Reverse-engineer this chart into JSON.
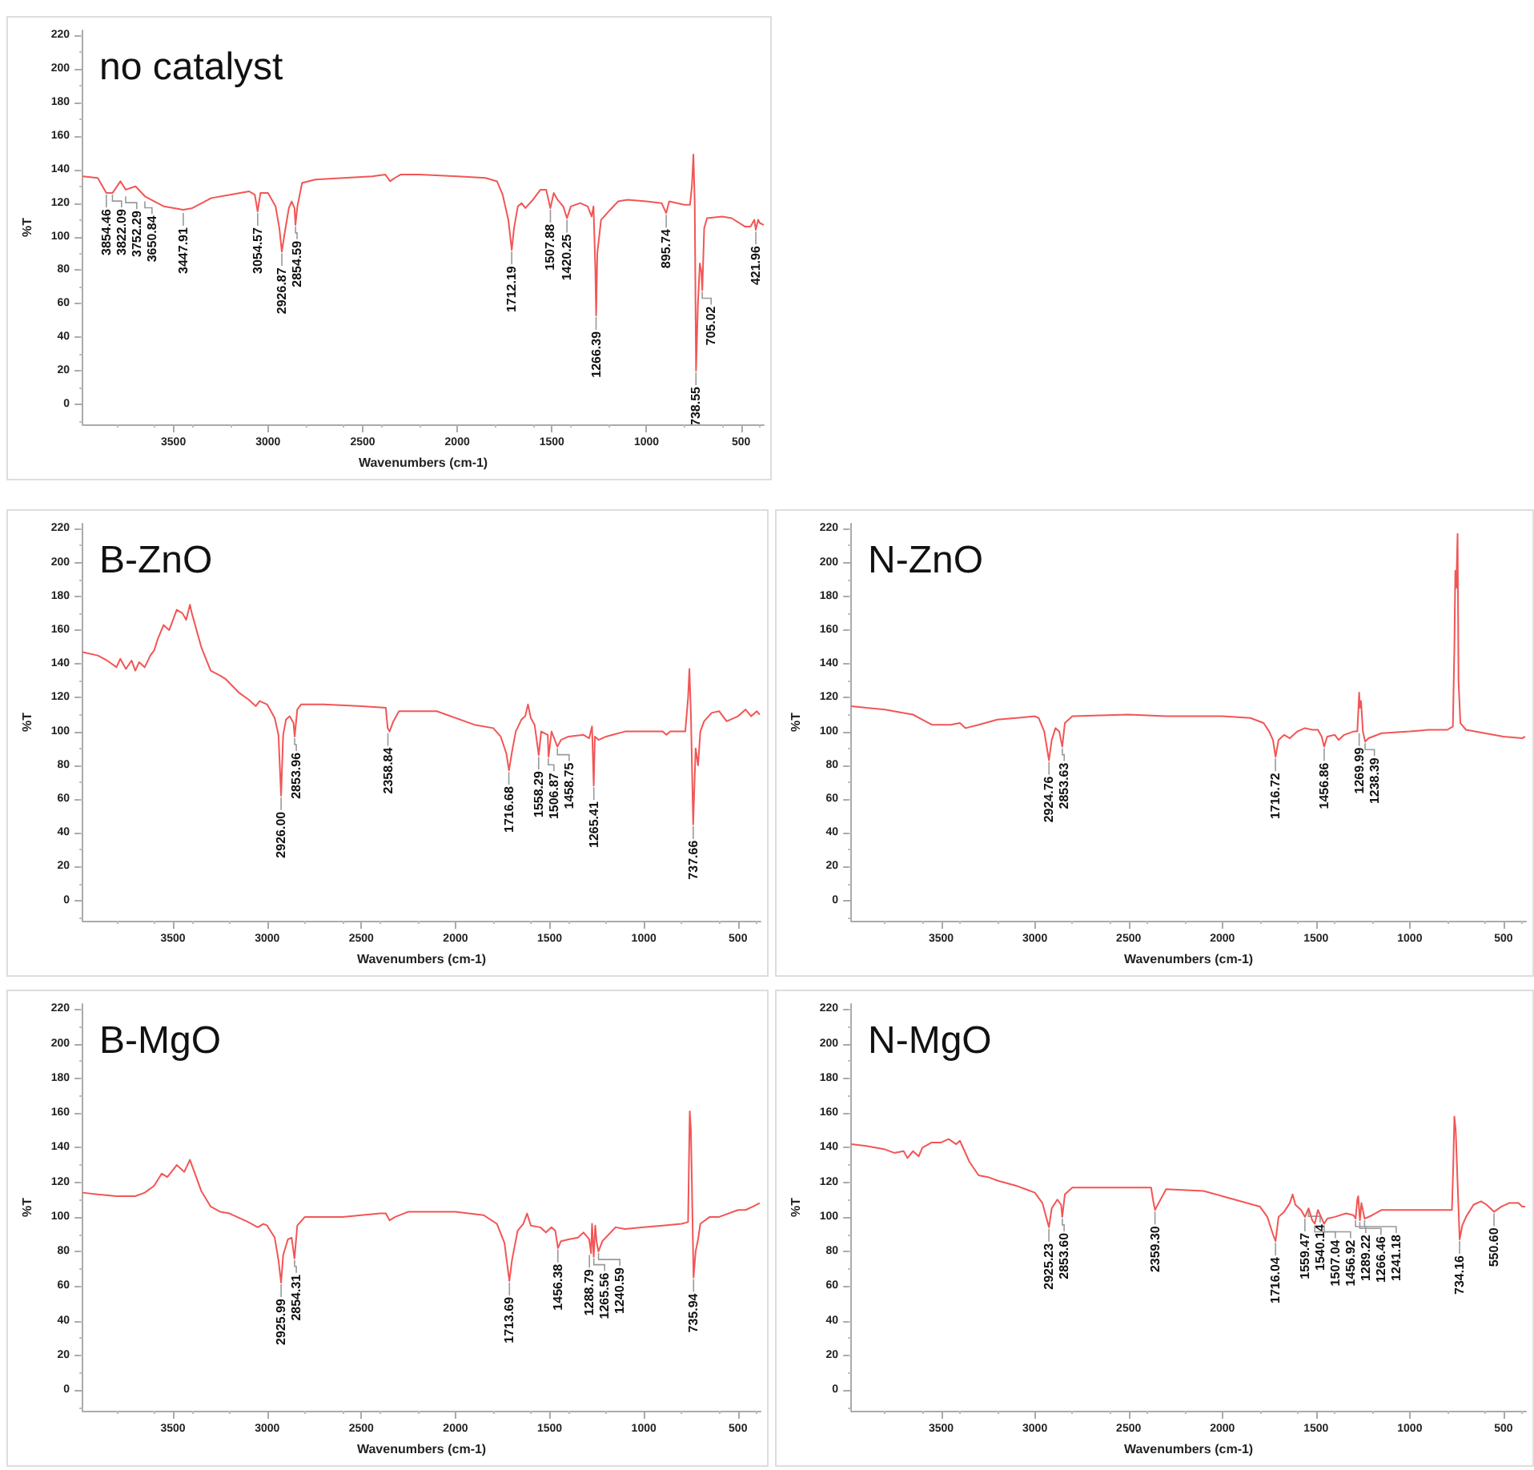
{
  "chart_data": [
    {
      "type": "line",
      "title": "no catalyst",
      "xlabel": "Wavenumbers (cm-1)",
      "ylabel": "%T",
      "color": "#f25555",
      "xlim": [
        3980,
        380
      ],
      "ylim": [
        -12,
        223
      ],
      "xticks": [
        3500,
        3000,
        2500,
        2000,
        1500,
        1000,
        500
      ],
      "yticks": [
        0,
        20,
        40,
        60,
        80,
        100,
        120,
        140,
        160,
        180,
        200,
        220
      ],
      "x": [
        3980,
        3900,
        3854.46,
        3822.09,
        3780,
        3752,
        3700,
        3650,
        3600,
        3550,
        3448,
        3400,
        3300,
        3200,
        3100,
        3070,
        3055,
        3040,
        3000,
        2960,
        2940,
        2927,
        2915,
        2890,
        2875,
        2860,
        2855,
        2845,
        2820,
        2750,
        2600,
        2450,
        2380,
        2355,
        2330,
        2300,
        2200,
        2000,
        1850,
        1790,
        1760,
        1730,
        1712,
        1700,
        1680,
        1660,
        1640,
        1600,
        1560,
        1530,
        1508,
        1490,
        1470,
        1440,
        1420,
        1400,
        1350,
        1310,
        1290,
        1280,
        1270,
        1266,
        1260,
        1240,
        1200,
        1150,
        1100,
        1000,
        920,
        896,
        880,
        800,
        770,
        760,
        752,
        745,
        738,
        728,
        718,
        710,
        705,
        695,
        680,
        600,
        550,
        480,
        450,
        430,
        422,
        410,
        400,
        380
      ],
      "values": [
        136,
        135,
        126,
        126,
        133,
        128,
        130,
        124,
        121,
        118,
        116,
        117,
        123,
        125,
        127,
        125,
        115,
        126,
        126,
        118,
        105,
        91,
        100,
        117,
        121,
        117,
        107,
        118,
        132,
        134,
        135,
        136,
        137,
        133,
        135,
        137,
        137,
        136,
        135,
        133,
        125,
        110,
        92,
        105,
        118,
        120,
        117,
        122,
        128,
        128,
        117,
        126,
        122,
        118,
        111,
        118,
        120,
        118,
        112,
        118,
        80,
        53,
        90,
        110,
        115,
        121,
        122,
        121,
        120,
        114,
        121,
        119,
        119,
        130,
        149,
        120,
        20,
        60,
        84,
        79,
        68,
        105,
        111,
        112,
        111,
        106,
        106,
        110,
        104,
        110,
        108,
        107
      ],
      "annotations": [
        {
          "text": "3854.46",
          "x": 3854.46,
          "y": 126
        },
        {
          "text": "3822.09",
          "x": 3822.09,
          "y": 126
        },
        {
          "text": "3752.29",
          "x": 3752.29,
          "y": 125
        },
        {
          "text": "3650.84",
          "x": 3650.84,
          "y": 122
        },
        {
          "text": "3447.91",
          "x": 3447.91,
          "y": 115
        },
        {
          "text": "3054.57",
          "x": 3054.57,
          "y": 115
        },
        {
          "text": "2926.87",
          "x": 2926.87,
          "y": 91
        },
        {
          "text": "2854.59",
          "x": 2854.59,
          "y": 107
        },
        {
          "text": "1712.19",
          "x": 1712.19,
          "y": 92
        },
        {
          "text": "1507.88",
          "x": 1507.88,
          "y": 117
        },
        {
          "text": "1420.25",
          "x": 1420.25,
          "y": 111
        },
        {
          "text": "1266.39",
          "x": 1266.39,
          "y": 53
        },
        {
          "text": "895.74",
          "x": 895.74,
          "y": 114
        },
        {
          "text": "738.55",
          "x": 738.55,
          "y": 20
        },
        {
          "text": "705.02",
          "x": 705.02,
          "y": 68
        },
        {
          "text": "421.96",
          "x": 421.96,
          "y": 104
        }
      ]
    },
    {
      "type": "line",
      "title": "B-ZnO",
      "xlabel": "Wavenumbers (cm-1)",
      "ylabel": "%T",
      "color": "#f25555",
      "xlim": [
        3980,
        380
      ],
      "ylim": [
        -12,
        223
      ],
      "xticks": [
        3500,
        3000,
        2500,
        2000,
        1500,
        1000,
        500
      ],
      "yticks": [
        0,
        20,
        40,
        60,
        80,
        100,
        120,
        140,
        160,
        180,
        200,
        220
      ],
      "x": [
        3980,
        3900,
        3850,
        3800,
        3780,
        3750,
        3720,
        3700,
        3680,
        3650,
        3620,
        3600,
        3580,
        3550,
        3520,
        3480,
        3450,
        3430,
        3410,
        3400,
        3350,
        3300,
        3250,
        3220,
        3150,
        3100,
        3060,
        3040,
        3000,
        2960,
        2940,
        2926,
        2915,
        2900,
        2880,
        2860,
        2854,
        2840,
        2820,
        2700,
        2500,
        2370,
        2360,
        2350,
        2330,
        2300,
        2100,
        1900,
        1800,
        1760,
        1730,
        1716,
        1700,
        1680,
        1650,
        1630,
        1615,
        1600,
        1580,
        1558,
        1545,
        1510,
        1506,
        1490,
        1459,
        1440,
        1400,
        1320,
        1290,
        1275,
        1266,
        1260,
        1240,
        1200,
        1100,
        900,
        880,
        860,
        780,
        765,
        758,
        750,
        738,
        725,
        712,
        700,
        680,
        640,
        600,
        560,
        500,
        460,
        430,
        400,
        385
      ],
      "values": [
        147,
        145,
        142,
        138,
        143,
        137,
        142,
        136,
        141,
        138,
        145,
        148,
        155,
        163,
        160,
        172,
        170,
        166,
        175,
        170,
        150,
        136,
        133,
        131,
        123,
        119,
        115,
        118,
        116,
        108,
        98,
        62,
        98,
        107,
        109,
        105,
        97,
        113,
        116,
        116,
        115,
        114,
        102,
        100,
        106,
        112,
        112,
        104,
        102,
        97,
        87,
        77,
        88,
        100,
        107,
        109,
        116,
        108,
        104,
        86,
        100,
        98,
        85,
        100,
        91,
        95,
        97,
        98,
        96,
        103,
        68,
        97,
        95,
        97,
        100,
        100,
        98,
        100,
        100,
        120,
        137,
        110,
        45,
        90,
        80,
        100,
        106,
        111,
        112,
        106,
        109,
        113,
        109,
        112,
        110
      ],
      "annotations": [
        {
          "text": "2926.00",
          "x": 2926.0,
          "y": 62
        },
        {
          "text": "2853.96",
          "x": 2853.96,
          "y": 97
        },
        {
          "text": "2358.84",
          "x": 2358.84,
          "y": 100
        },
        {
          "text": "1716.68",
          "x": 1716.68,
          "y": 77
        },
        {
          "text": "1558.29",
          "x": 1558.29,
          "y": 86
        },
        {
          "text": "1506.87",
          "x": 1506.87,
          "y": 85
        },
        {
          "text": "1458.75",
          "x": 1458.75,
          "y": 91
        },
        {
          "text": "1265.41",
          "x": 1265.41,
          "y": 68
        },
        {
          "text": "737.66",
          "x": 737.66,
          "y": 45
        }
      ]
    },
    {
      "type": "line",
      "title": "N-ZnO",
      "xlabel": "Wavenumbers (cm-1)",
      "ylabel": "%T",
      "color": "#f25555",
      "xlim": [
        3980,
        380
      ],
      "ylim": [
        -12,
        223
      ],
      "xticks": [
        3500,
        3000,
        2500,
        2000,
        1500,
        1000,
        500
      ],
      "yticks": [
        0,
        20,
        40,
        60,
        80,
        100,
        120,
        140,
        160,
        180,
        200,
        220
      ],
      "x": [
        3980,
        3900,
        3800,
        3700,
        3650,
        3600,
        3550,
        3500,
        3450,
        3400,
        3370,
        3300,
        3200,
        3000,
        2980,
        2950,
        2925,
        2910,
        2890,
        2870,
        2854,
        2840,
        2800,
        2500,
        2300,
        2000,
        1850,
        1780,
        1750,
        1730,
        1716,
        1700,
        1670,
        1640,
        1600,
        1560,
        1520,
        1490,
        1470,
        1457,
        1440,
        1400,
        1380,
        1350,
        1300,
        1280,
        1275,
        1270,
        1266,
        1260,
        1250,
        1238,
        1220,
        1150,
        1000,
        900,
        800,
        770,
        762,
        757,
        752,
        745,
        740,
        730,
        700,
        600,
        500,
        400,
        385
      ],
      "values": [
        115,
        114,
        113,
        111,
        110,
        107,
        104,
        104,
        104,
        105,
        102,
        104,
        107,
        109,
        108,
        100,
        83,
        95,
        102,
        100,
        91,
        105,
        109,
        110,
        109,
        109,
        108,
        105,
        100,
        95,
        85,
        95,
        98,
        96,
        100,
        102,
        101,
        101,
        97,
        91,
        97,
        98,
        95,
        98,
        100,
        100,
        111,
        123,
        114,
        118,
        100,
        94,
        96,
        99,
        100,
        101,
        101,
        103,
        150,
        195,
        185,
        217,
        130,
        105,
        101,
        99,
        97,
        96,
        97
      ],
      "annotations": [
        {
          "text": "2924.76",
          "x": 2924.76,
          "y": 83
        },
        {
          "text": "2853.63",
          "x": 2853.63,
          "y": 91
        },
        {
          "text": "1716.72",
          "x": 1716.72,
          "y": 85
        },
        {
          "text": "1456.86",
          "x": 1456.86,
          "y": 91
        },
        {
          "text": "1269.99",
          "x": 1269.99,
          "y": 100
        },
        {
          "text": "1238.39",
          "x": 1238.39,
          "y": 94
        }
      ]
    },
    {
      "type": "line",
      "title": "B-MgO",
      "xlabel": "Wavenumbers (cm-1)",
      "ylabel": "%T",
      "color": "#f25555",
      "xlim": [
        3980,
        380
      ],
      "ylim": [
        -12,
        223
      ],
      "xticks": [
        3500,
        3000,
        2500,
        2000,
        1500,
        1000,
        500
      ],
      "yticks": [
        0,
        20,
        40,
        60,
        80,
        100,
        120,
        140,
        160,
        180,
        200,
        220
      ],
      "x": [
        3980,
        3900,
        3800,
        3700,
        3650,
        3600,
        3560,
        3530,
        3480,
        3440,
        3410,
        3400,
        3350,
        3300,
        3250,
        3200,
        3100,
        3050,
        3020,
        3000,
        2960,
        2940,
        2926,
        2915,
        2890,
        2870,
        2855,
        2840,
        2800,
        2600,
        2400,
        2370,
        2350,
        2320,
        2250,
        2000,
        1850,
        1780,
        1740,
        1714,
        1700,
        1670,
        1640,
        1620,
        1600,
        1550,
        1520,
        1490,
        1470,
        1456,
        1440,
        1400,
        1350,
        1320,
        1290,
        1280,
        1275,
        1266,
        1258,
        1250,
        1241,
        1220,
        1150,
        1100,
        1000,
        900,
        800,
        765,
        760,
        756,
        750,
        745,
        736,
        725,
        712,
        700,
        650,
        600,
        500,
        460,
        420,
        385
      ],
      "values": [
        114,
        113,
        112,
        112,
        114,
        118,
        125,
        123,
        130,
        126,
        133,
        130,
        115,
        106,
        103,
        102,
        97,
        94,
        96,
        95,
        88,
        75,
        62,
        78,
        87,
        88,
        76,
        95,
        100,
        100,
        102,
        102,
        98,
        100,
        103,
        103,
        101,
        96,
        85,
        63,
        75,
        92,
        96,
        102,
        95,
        94,
        91,
        94,
        92,
        82,
        86,
        87,
        88,
        91,
        87,
        79,
        96,
        77,
        95,
        85,
        80,
        86,
        94,
        93,
        94,
        95,
        96,
        97,
        135,
        161,
        150,
        120,
        65,
        80,
        87,
        96,
        100,
        100,
        104,
        104,
        106,
        108
      ],
      "annotations": [
        {
          "text": "2925.99",
          "x": 2925.99,
          "y": 62
        },
        {
          "text": "2854.31",
          "x": 2854.31,
          "y": 76
        },
        {
          "text": "1713.69",
          "x": 1713.69,
          "y": 63
        },
        {
          "text": "1456.38",
          "x": 1456.38,
          "y": 82
        },
        {
          "text": "1288.79",
          "x": 1288.79,
          "y": 79
        },
        {
          "text": "1265.56",
          "x": 1265.56,
          "y": 77
        },
        {
          "text": "1240.59",
          "x": 1240.59,
          "y": 80
        },
        {
          "text": "735.94",
          "x": 735.94,
          "y": 65
        }
      ]
    },
    {
      "type": "line",
      "title": "N-MgO",
      "xlabel": "Wavenumbers (cm-1)",
      "ylabel": "%T",
      "color": "#f25555",
      "xlim": [
        3980,
        380
      ],
      "ylim": [
        -12,
        223
      ],
      "xticks": [
        3500,
        3000,
        2500,
        2000,
        1500,
        1000,
        500
      ],
      "yticks": [
        0,
        20,
        40,
        60,
        80,
        100,
        120,
        140,
        160,
        180,
        200,
        220
      ],
      "x": [
        3980,
        3900,
        3800,
        3750,
        3700,
        3680,
        3650,
        3620,
        3600,
        3550,
        3500,
        3460,
        3420,
        3400,
        3350,
        3300,
        3250,
        3200,
        3100,
        3050,
        3000,
        2960,
        2925,
        2910,
        2880,
        2860,
        2854,
        2840,
        2800,
        2500,
        2380,
        2370,
        2359,
        2340,
        2300,
        2100,
        2000,
        1900,
        1800,
        1760,
        1730,
        1716,
        1700,
        1670,
        1640,
        1625,
        1610,
        1580,
        1559,
        1540,
        1520,
        1507,
        1490,
        1457,
        1440,
        1400,
        1340,
        1300,
        1289,
        1280,
        1275,
        1266,
        1258,
        1241,
        1200,
        1150,
        1000,
        900,
        800,
        775,
        768,
        762,
        755,
        745,
        734,
        720,
        700,
        660,
        620,
        590,
        550,
        510,
        470,
        420,
        400,
        385
      ],
      "values": [
        142,
        141,
        139,
        137,
        138,
        134,
        138,
        135,
        140,
        143,
        143,
        145,
        142,
        144,
        132,
        124,
        123,
        121,
        118,
        116,
        114,
        108,
        94,
        105,
        110,
        107,
        100,
        113,
        117,
        117,
        117,
        110,
        104,
        108,
        116,
        115,
        112,
        109,
        106,
        100,
        90,
        86,
        100,
        103,
        108,
        113,
        107,
        104,
        100,
        105,
        98,
        96,
        104,
        96,
        99,
        100,
        102,
        101,
        99,
        110,
        112,
        98,
        108,
        99,
        101,
        104,
        104,
        104,
        104,
        104,
        130,
        158,
        150,
        120,
        87,
        95,
        100,
        107,
        109,
        107,
        103,
        106,
        108,
        108,
        106,
        106
      ],
      "annotations": [
        {
          "text": "2925.23",
          "x": 2925.23,
          "y": 94
        },
        {
          "text": "2853.60",
          "x": 2853.6,
          "y": 100
        },
        {
          "text": "2359.30",
          "x": 2359.3,
          "y": 104
        },
        {
          "text": "1716.04",
          "x": 1716.04,
          "y": 86
        },
        {
          "text": "1559.47",
          "x": 1559.47,
          "y": 100
        },
        {
          "text": "1540.14",
          "x": 1540.14,
          "y": 105
        },
        {
          "text": "1507.04",
          "x": 1507.04,
          "y": 96
        },
        {
          "text": "1456.92",
          "x": 1456.92,
          "y": 96
        },
        {
          "text": "1289.22",
          "x": 1289.22,
          "y": 99
        },
        {
          "text": "1266.46",
          "x": 1266.46,
          "y": 98
        },
        {
          "text": "1241.18",
          "x": 1241.18,
          "y": 99
        },
        {
          "text": "734.16",
          "x": 734.16,
          "y": 87
        },
        {
          "text": "550.60",
          "x": 550.6,
          "y": 103
        }
      ]
    }
  ]
}
